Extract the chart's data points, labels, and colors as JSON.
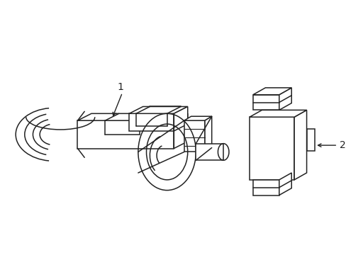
{
  "background_color": "#ffffff",
  "line_color": "#222222",
  "line_width": 1.1,
  "label_1": "1",
  "label_2": "2"
}
